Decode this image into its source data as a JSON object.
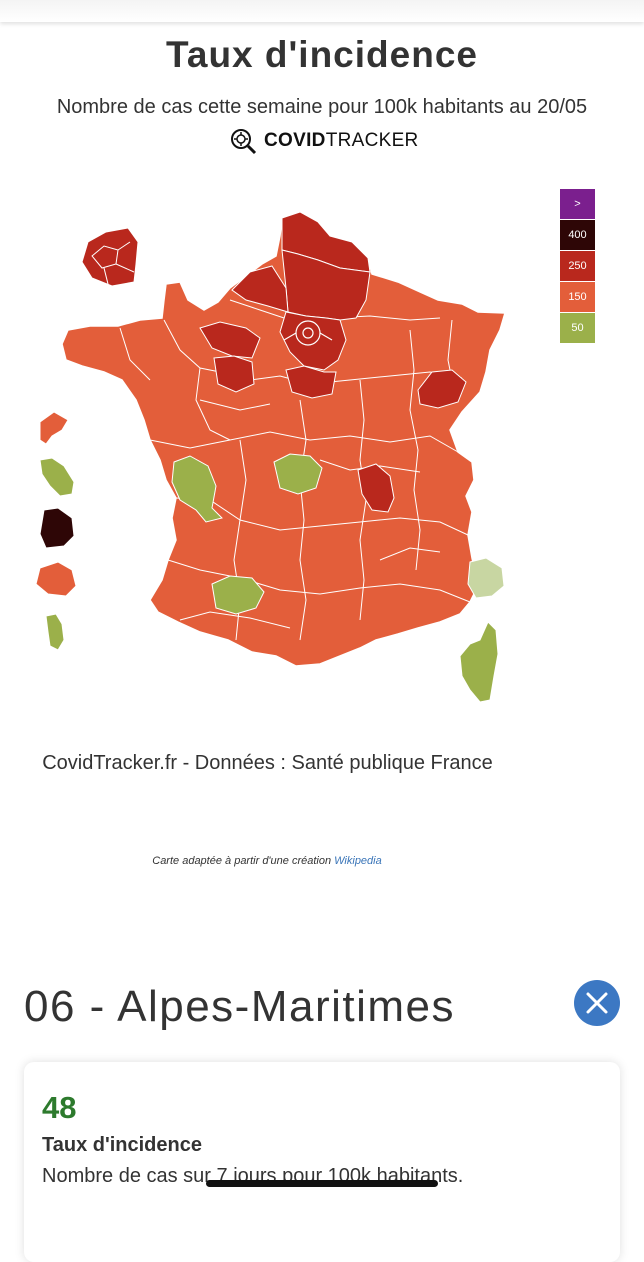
{
  "header": {
    "title": "Taux d'incidence",
    "subtitle": "Nombre de cas cette semaine pour 100k habitants au 20/05",
    "brand_bold": "COVID",
    "brand_light": "TRACKER"
  },
  "legend": [
    {
      "label": ">",
      "color": "#7b1f8e"
    },
    {
      "label": "400",
      "color": "#2e0606"
    },
    {
      "label": "250",
      "color": "#b9281d"
    },
    {
      "label": "150",
      "color": "#e35e3a"
    },
    {
      "label": "50",
      "color": "#9bb04a"
    }
  ],
  "colors": {
    "level_150": "#e35e3a",
    "level_250": "#b9281d",
    "level_400": "#2e0606",
    "level_50": "#9bb04a",
    "level_low": "#c8d6a2",
    "accent": "#3c78c3",
    "value_green": "#2d7a2d"
  },
  "source_text": "CovidTracker.fr - Données : Santé publique France",
  "credit": {
    "text": "Carte adaptée à partir d'une création",
    "link": "Wikipedia"
  },
  "department": {
    "title": "06 - Alpes-Maritimes",
    "value": "48",
    "label": "Taux d'incidence",
    "description": "Nombre de cas sur 7 jours pour 100k habitants."
  }
}
